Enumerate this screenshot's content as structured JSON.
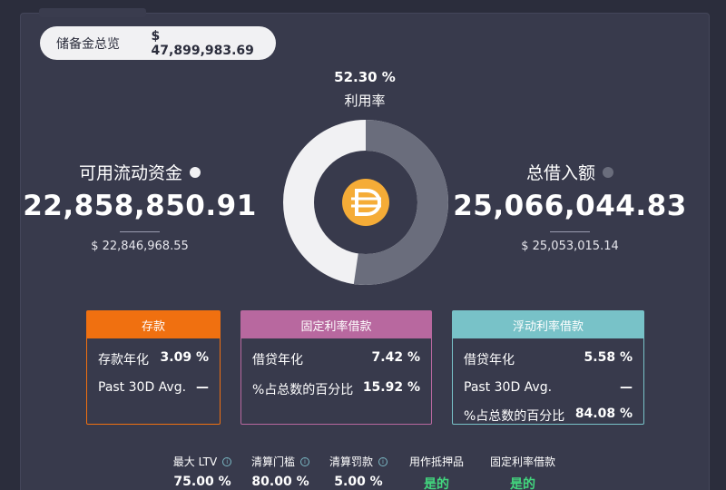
{
  "reserve": {
    "label": "储备金总览",
    "value": "$ 47,899,983.69"
  },
  "utilization": {
    "percent": "52.30 %",
    "label": "利用率",
    "fraction": 0.523
  },
  "asset": {
    "icon": "dai-coin-icon",
    "color": "#f5ac37"
  },
  "available": {
    "title": "可用流动资金",
    "amount": "22,858,850.91",
    "usd": "$ 22,846,968.55",
    "dot_color": "#f1f1f3"
  },
  "borrowed": {
    "title": "总借入额",
    "amount": "25,066,044.83",
    "usd": "$ 25,053,015.14",
    "dot_color": "#6a6d7c"
  },
  "deposit_card": {
    "header": "存款",
    "rows": [
      {
        "label": "存款年化",
        "value": "3.09 %"
      },
      {
        "label": "Past 30D Avg.",
        "value": "—"
      }
    ]
  },
  "fixed_card": {
    "header": "固定利率借款",
    "rows": [
      {
        "label": "借贷年化",
        "value": "7.42 %"
      },
      {
        "label": "%占总数的百分比",
        "value": "15.92 %"
      }
    ]
  },
  "float_card": {
    "header": "浮动利率借款",
    "rows": [
      {
        "label": "借贷年化",
        "value": "5.58 %"
      },
      {
        "label": "Past 30D Avg.",
        "value": "—"
      },
      {
        "label": "%占总数的百分比",
        "value": "84.08 %"
      }
    ]
  },
  "params": [
    {
      "label": "最大 LTV",
      "value": "75.00 %"
    },
    {
      "label": "清算门槛",
      "value": "80.00 %"
    },
    {
      "label": "清算罚款",
      "value": "5.00 %"
    },
    {
      "label": "用作抵押品",
      "value": "是的"
    },
    {
      "label": "固定利率借款",
      "value": "是的"
    }
  ],
  "colors": {
    "available": "#f1f1f3",
    "borrowed": "#6a6d7c",
    "deposit": "#f07010",
    "fixed": "#b8689f",
    "float": "#78c2c8",
    "yes": "#42d67e"
  }
}
